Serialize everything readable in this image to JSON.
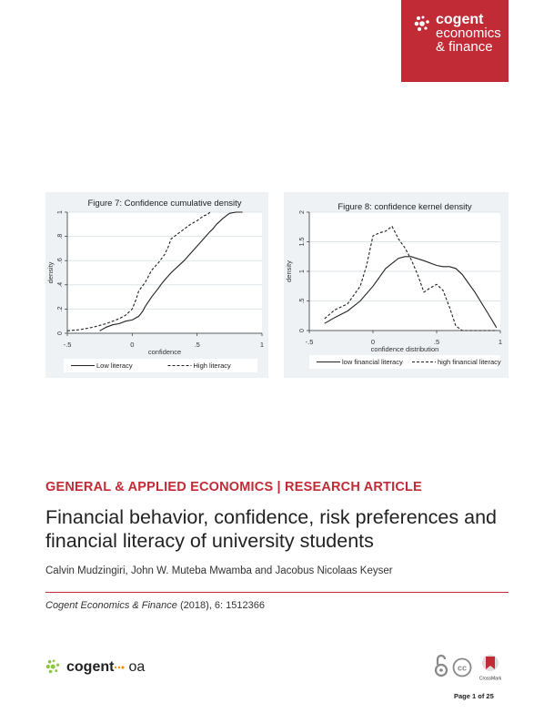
{
  "brand": {
    "name_line1": "cogent",
    "name_line2": "economics",
    "name_line3": "& finance",
    "color": "#c12b36"
  },
  "chart_data": [
    {
      "type": "line",
      "title": "Figure 7: Confidence cumulative density",
      "xlabel": "confidence",
      "ylabel": "density",
      "xlim": [
        -0.5,
        1
      ],
      "ylim": [
        0,
        1
      ],
      "xticks": [
        {
          "v": -0.5,
          "label": "-.5"
        },
        {
          "v": 0,
          "label": "0"
        },
        {
          "v": 0.5,
          "label": ".5"
        },
        {
          "v": 1,
          "label": "1"
        }
      ],
      "yticks": [
        {
          "v": 0,
          "label": "0"
        },
        {
          "v": 0.2,
          "label": ".2"
        },
        {
          "v": 0.4,
          "label": ".4"
        },
        {
          "v": 0.6,
          "label": ".6"
        },
        {
          "v": 0.8,
          "label": ".8"
        },
        {
          "v": 1,
          "label": "1"
        }
      ],
      "grid": true,
      "legend": "bottom",
      "series": [
        {
          "name": "Low literacy",
          "style": "solid",
          "x": [
            -0.25,
            -0.2,
            -0.15,
            -0.1,
            -0.05,
            0.0,
            0.05,
            0.08,
            0.1,
            0.15,
            0.2,
            0.22,
            0.25,
            0.3,
            0.35,
            0.4,
            0.45,
            0.5,
            0.55,
            0.6,
            0.62,
            0.65,
            0.7,
            0.75,
            0.8,
            0.85
          ],
          "y": [
            0.02,
            0.05,
            0.07,
            0.08,
            0.1,
            0.11,
            0.14,
            0.18,
            0.22,
            0.3,
            0.37,
            0.4,
            0.44,
            0.5,
            0.55,
            0.6,
            0.66,
            0.72,
            0.78,
            0.84,
            0.86,
            0.9,
            0.95,
            0.99,
            1.0,
            1.0
          ]
        },
        {
          "name": "High literacy",
          "style": "dashed",
          "x": [
            -0.5,
            -0.4,
            -0.3,
            -0.2,
            -0.1,
            -0.05,
            0.0,
            0.03,
            0.05,
            0.1,
            0.15,
            0.2,
            0.25,
            0.28,
            0.3,
            0.35,
            0.4,
            0.45,
            0.5,
            0.55,
            0.58,
            0.6
          ],
          "y": [
            0.02,
            0.03,
            0.05,
            0.08,
            0.12,
            0.15,
            0.2,
            0.28,
            0.35,
            0.42,
            0.52,
            0.58,
            0.65,
            0.72,
            0.78,
            0.82,
            0.86,
            0.9,
            0.93,
            0.97,
            0.98,
            1.0
          ]
        }
      ]
    },
    {
      "type": "line",
      "title": "Figure 8: confidence kernel density",
      "xlabel": "confidence distribution",
      "ylabel": "density",
      "xlim": [
        -0.5,
        1
      ],
      "ylim": [
        0,
        2
      ],
      "xticks": [
        {
          "v": -0.5,
          "label": "-.5"
        },
        {
          "v": 0,
          "label": "0"
        },
        {
          "v": 0.5,
          "label": ".5"
        },
        {
          "v": 1,
          "label": "1"
        }
      ],
      "yticks": [
        {
          "v": 0,
          "label": "0"
        },
        {
          "v": 0.5,
          "label": ".5"
        },
        {
          "v": 1,
          "label": "1"
        },
        {
          "v": 1.5,
          "label": "1.5"
        },
        {
          "v": 2,
          "label": "2"
        }
      ],
      "grid": true,
      "legend": "bottom",
      "series": [
        {
          "name": "low financial literacy",
          "style": "solid",
          "x": [
            -0.38,
            -0.3,
            -0.2,
            -0.1,
            0.0,
            0.1,
            0.2,
            0.25,
            0.3,
            0.4,
            0.5,
            0.55,
            0.6,
            0.65,
            0.7,
            0.8,
            0.9,
            0.97
          ],
          "y": [
            0.12,
            0.22,
            0.33,
            0.5,
            0.75,
            1.05,
            1.22,
            1.25,
            1.25,
            1.18,
            1.1,
            1.08,
            1.08,
            1.05,
            0.95,
            0.65,
            0.3,
            0.05
          ]
        },
        {
          "name": "high financial literacy",
          "style": "dashed",
          "x": [
            -0.38,
            -0.3,
            -0.2,
            -0.1,
            -0.05,
            0.0,
            0.05,
            0.1,
            0.15,
            0.2,
            0.25,
            0.3,
            0.35,
            0.4,
            0.45,
            0.5,
            0.55,
            0.6,
            0.65,
            0.7,
            0.8,
            0.9,
            0.97
          ],
          "y": [
            0.2,
            0.35,
            0.45,
            0.75,
            1.1,
            1.6,
            1.65,
            1.68,
            1.76,
            1.55,
            1.4,
            1.2,
            0.95,
            0.65,
            0.72,
            0.78,
            0.68,
            0.4,
            0.08,
            0.0,
            0.0,
            0.0,
            0.0
          ]
        }
      ]
    }
  ],
  "article": {
    "category": "GENERAL & APPLIED ECONOMICS | RESEARCH ARTICLE",
    "title": "Financial behavior, confidence, risk preferences and financial literacy of university students",
    "authors": "Calvin Mudzingiri, John W. Muteba Mwamba and Jacobus Nicolaas Keyser",
    "journal": "Cogent Economics & Finance",
    "citation_rest": " (2018), 6: 1512366"
  },
  "footer": {
    "logo_cogent": "cogent",
    "logo_oa": "oa",
    "page": "Page 1 of 25",
    "crossmark_label": "CrossMark",
    "cc_label": "cc"
  }
}
